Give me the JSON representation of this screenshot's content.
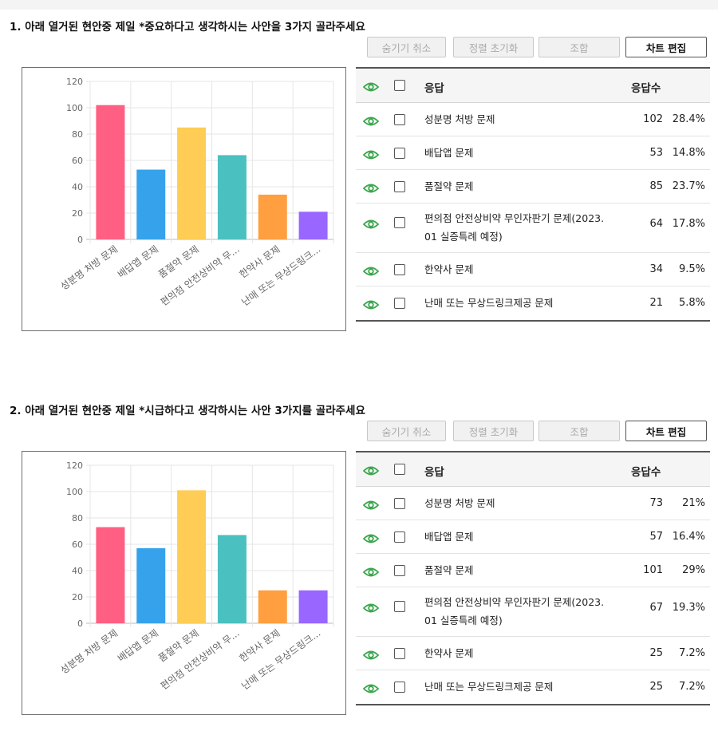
{
  "buttons": {
    "hide_cancel": "숨기기 취소",
    "sort_reset": "정렬 초기화",
    "combine": "조합",
    "edit_chart": "차트 편집"
  },
  "table_header": {
    "answer": "응답",
    "count": "응답수"
  },
  "questions": [
    {
      "title": "1. 아래 열거된 현안중 제일 *중요하다고 생각하시는 사안을 3가지 골라주세요",
      "rows": [
        {
          "label": "성분명 처방 문제",
          "count": "102",
          "pct": "28.4%"
        },
        {
          "label": "배답앱 문제",
          "count": "53",
          "pct": "14.8%"
        },
        {
          "label": "품절약 문제",
          "count": "85",
          "pct": "23.7%"
        },
        {
          "label": "편의점 안전상비약 무인자판기 문제(2023.",
          "label2": "01 실증특례 예정)",
          "count": "64",
          "pct": "17.8%"
        },
        {
          "label": "한약사 문제",
          "count": "34",
          "pct": "9.5%"
        },
        {
          "label": "난매 또는 무상드링크제공 문제",
          "count": "21",
          "pct": "5.8%"
        }
      ]
    },
    {
      "title": "2. 아래 열거된 현안중 제일 *시급하다고 생각하시는 사안 3가지를 골라주세요",
      "rows": [
        {
          "label": "성분명 처방 문제",
          "count": "73",
          "pct": "21%"
        },
        {
          "label": "배답앱 문제",
          "count": "57",
          "pct": "16.4%"
        },
        {
          "label": "품절약 문제",
          "count": "101",
          "pct": "29%"
        },
        {
          "label": "편의점 안전상비약 무인자판기 문제(2023.",
          "label2": "01 실증특례 예정)",
          "count": "67",
          "pct": "19.3%"
        },
        {
          "label": "한약사 문제",
          "count": "25",
          "pct": "7.2%"
        },
        {
          "label": "난매 또는 무상드링크제공 문제",
          "count": "25",
          "pct": "7.2%"
        }
      ]
    }
  ],
  "chart_data": [
    {
      "type": "bar",
      "categories": [
        "성분명 처방 문제",
        "배답앱 문제",
        "품절약 문제",
        "편의점 안전상비약 무...",
        "한약사 문제",
        "난매 또는 무상드링크..."
      ],
      "values": [
        102,
        53,
        85,
        64,
        34,
        21
      ],
      "colors": [
        "#ff5f83",
        "#36a2eb",
        "#ffcd56",
        "#4bc0c0",
        "#ff9f40",
        "#9966ff"
      ],
      "ylim": [
        0,
        120
      ],
      "yticks": [
        "0",
        "20",
        "40",
        "60",
        "80",
        "100",
        "120"
      ],
      "grid": true
    },
    {
      "type": "bar",
      "categories": [
        "성분명 처방 문제",
        "배답앱 문제",
        "품절약 문제",
        "편의점 안전상비약 무...",
        "한약사 문제",
        "난매 또는 무상드링크..."
      ],
      "values": [
        73,
        57,
        101,
        67,
        25,
        25
      ],
      "colors": [
        "#ff5f83",
        "#36a2eb",
        "#ffcd56",
        "#4bc0c0",
        "#ff9f40",
        "#9966ff"
      ],
      "ylim": [
        0,
        120
      ],
      "yticks": [
        "0",
        "20",
        "40",
        "60",
        "80",
        "100",
        "120"
      ],
      "grid": true
    }
  ],
  "icons": {
    "visibility": "eye-icon",
    "select": "checkbox"
  },
  "accent_color": "#3aa64c"
}
